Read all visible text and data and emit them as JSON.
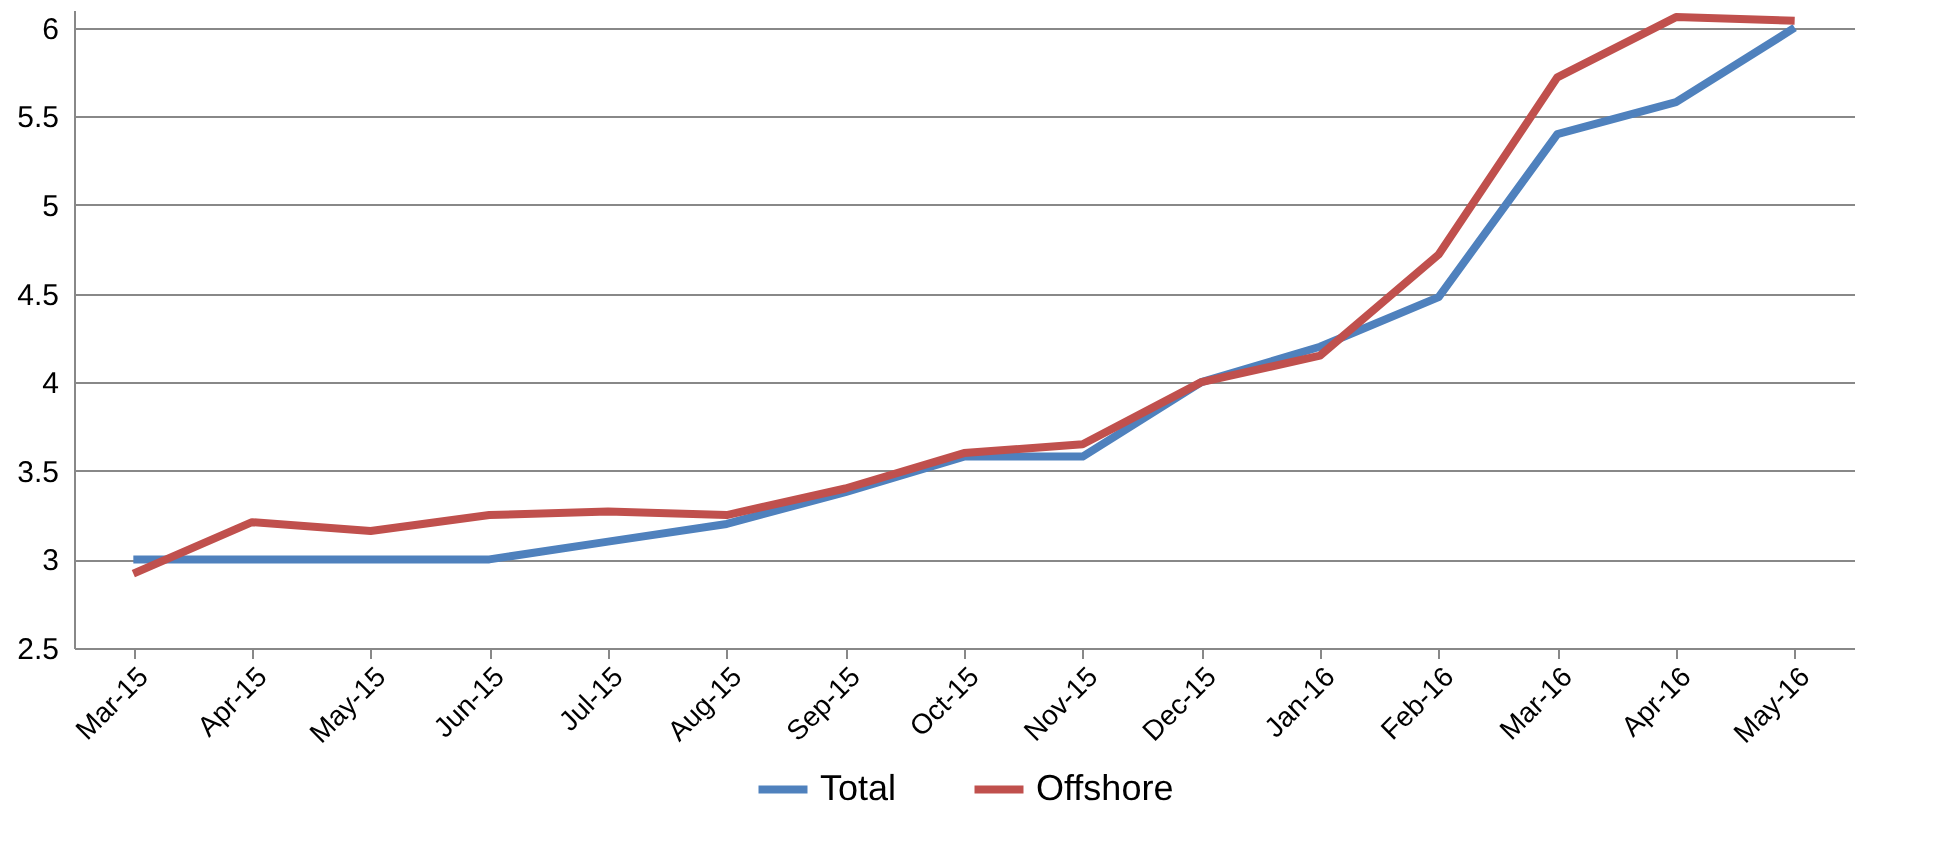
{
  "chart_data": {
    "type": "line",
    "categories": [
      "Mar-15",
      "Apr-15",
      "May-15",
      "Jun-15",
      "Jul-15",
      "Aug-15",
      "Sep-15",
      "Oct-15",
      "Nov-15",
      "Dec-15",
      "Jan-16",
      "Feb-16",
      "Mar-16",
      "Apr-16",
      "May-16"
    ],
    "series": [
      {
        "name": "Total",
        "color": "#4f81bd",
        "values": [
          3.0,
          3.0,
          3.0,
          3.0,
          3.1,
          3.2,
          3.38,
          3.58,
          3.58,
          4.0,
          4.2,
          4.48,
          5.4,
          5.58,
          6.0
        ]
      },
      {
        "name": "Offshore",
        "color": "#c0504d",
        "values": [
          2.92,
          3.21,
          3.16,
          3.25,
          3.27,
          3.25,
          3.4,
          3.6,
          3.65,
          4.0,
          4.15,
          4.72,
          5.72,
          6.06,
          6.04
        ]
      }
    ],
    "ylim": [
      2.5,
      6.1
    ],
    "yticks": [
      2.5,
      3,
      3.5,
      4,
      4.5,
      5,
      5.5,
      6
    ],
    "grid": "y",
    "legend": "bottom",
    "marker": "none",
    "line_style": "solid"
  }
}
